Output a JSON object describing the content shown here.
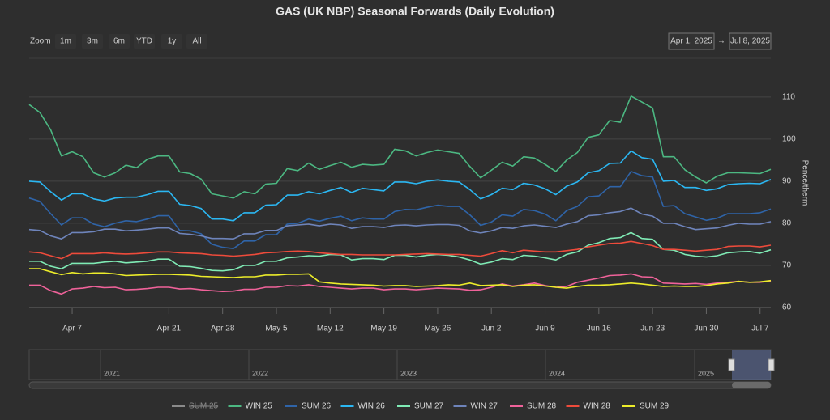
{
  "chart_data": {
    "type": "line",
    "title": "GAS (UK NBP) Seasonal Forwards (Daily Evolution)",
    "y_axis_label": "Pence/therm",
    "categories": [
      null,
      null,
      null,
      null,
      "Apr 7",
      null,
      null,
      null,
      null,
      null,
      null,
      null,
      null,
      "Apr 21",
      null,
      null,
      null,
      null,
      "Apr 28",
      null,
      null,
      null,
      null,
      "May 5",
      null,
      null,
      null,
      null,
      "May 12",
      null,
      null,
      null,
      null,
      "May 19",
      null,
      null,
      null,
      null,
      "May 26",
      null,
      null,
      null,
      null,
      "Jun 2",
      null,
      null,
      null,
      null,
      "Jun 9",
      null,
      null,
      null,
      null,
      "Jun 16",
      null,
      null,
      null,
      null,
      "Jun 23",
      null,
      null,
      null,
      null,
      "Jun 30",
      null,
      null,
      null,
      null,
      "Jul 7",
      null
    ],
    "ylim": [
      60,
      119
    ],
    "yticks": [
      60,
      70,
      80,
      90,
      100,
      110
    ],
    "grid": true,
    "legend": "bottom",
    "series": [
      {
        "name": "SUM 25",
        "color": "#9a9a9a",
        "visible": false
      },
      {
        "name": "WIN 25",
        "color": "#4cb882",
        "values": [
          108.2,
          106.3,
          102.2,
          96,
          97,
          95.8,
          92,
          91,
          92,
          93.8,
          93.2,
          95.2,
          96,
          96,
          92.2,
          91.8,
          90.5,
          87,
          86.5,
          86,
          87.5,
          87,
          89.3,
          89.5,
          93,
          92.5,
          94.3,
          92.8,
          93.7,
          94.5,
          93.3,
          94,
          93.8,
          94,
          97.6,
          97.2,
          96,
          96.8,
          97.4,
          97,
          96.6,
          93.5,
          90.8,
          92.6,
          94.5,
          93.6,
          95.8,
          95.5,
          94,
          92.3,
          95,
          96.8,
          100.4,
          101,
          104.4,
          104,
          110.2,
          108.8,
          107.4,
          95.8,
          95.8,
          92.7,
          91,
          89.6,
          91.2,
          92,
          92,
          91.9,
          91.8,
          92.8
        ]
      },
      {
        "name": "SUM 26",
        "color": "#2f64a8",
        "values": [
          86,
          85.2,
          82.3,
          79.6,
          81.3,
          81.3,
          79.8,
          79.2,
          80,
          80.6,
          80.4,
          81,
          81.8,
          81.8,
          78.3,
          78.2,
          77.5,
          75,
          74.3,
          74,
          75.8,
          75.8,
          77.3,
          77.3,
          79.8,
          80,
          81,
          80.5,
          81.2,
          81.7,
          80.6,
          81.3,
          81,
          81,
          82.8,
          83.3,
          83.2,
          83.8,
          84.3,
          84,
          84,
          82,
          79.5,
          80.3,
          82,
          81.7,
          83.3,
          83,
          82.2,
          80.6,
          83,
          84,
          86.3,
          86.5,
          88.7,
          88.7,
          92.3,
          91.3,
          91,
          84,
          84.2,
          82.3,
          81.5,
          80.7,
          81.2,
          82.3,
          82.3,
          82.3,
          82.5,
          83.4
        ]
      },
      {
        "name": "WIN 26",
        "color": "#2bb7f2",
        "values": [
          90,
          89.8,
          87.5,
          85.5,
          87,
          87,
          85.8,
          85.3,
          86,
          86.2,
          86.2,
          86.8,
          87.6,
          87.6,
          84.5,
          84.2,
          83.5,
          81,
          81,
          80.6,
          82.5,
          82.5,
          84.3,
          84.4,
          86.7,
          86.7,
          87.5,
          87,
          87.8,
          88.5,
          87.3,
          88.3,
          88,
          87.7,
          89.8,
          89.8,
          89.4,
          90,
          90.3,
          90,
          89.8,
          88,
          85.8,
          86.8,
          88.3,
          88,
          89.5,
          89.1,
          88.2,
          86.8,
          88.8,
          89.8,
          92,
          92.5,
          94.2,
          94.3,
          97.2,
          95.6,
          95.2,
          90,
          90.2,
          88.5,
          88.5,
          87.8,
          88.2,
          89.2,
          89.4,
          89.5,
          89.4,
          90.4
        ]
      },
      {
        "name": "SUM 27",
        "color": "#7febb5",
        "values": [
          71,
          71,
          69.8,
          69.2,
          70.5,
          70.5,
          70.5,
          70.8,
          71,
          70.6,
          70.8,
          71,
          71.5,
          71.5,
          69.8,
          69.7,
          69.3,
          68.8,
          68.7,
          69,
          70,
          70,
          71,
          71,
          71.8,
          72,
          72.3,
          72.2,
          72.6,
          72.5,
          71.3,
          71.6,
          71.6,
          71.4,
          72.4,
          72.4,
          72,
          72.4,
          72.6,
          72.4,
          72,
          71.3,
          70.3,
          70.8,
          71.6,
          71.4,
          72.4,
          72.2,
          71.8,
          71.3,
          72.6,
          73.2,
          74.8,
          75.4,
          76.4,
          76.6,
          77.8,
          76.4,
          76.2,
          73.8,
          73.6,
          72.6,
          72.2,
          72,
          72.3,
          73,
          73.2,
          73.3,
          72.9,
          73.7
        ]
      },
      {
        "name": "WIN 27",
        "color": "#6e84bb",
        "values": [
          78.5,
          78.3,
          77,
          76.3,
          77.8,
          77.8,
          78,
          78.6,
          78.6,
          78.2,
          78.4,
          78.6,
          78.9,
          78.9,
          77.6,
          77.4,
          77,
          76.4,
          76.4,
          76.3,
          77.5,
          77.5,
          78.3,
          78.3,
          79.4,
          79.6,
          79.8,
          79.4,
          79.8,
          79.6,
          78.8,
          79.2,
          79.2,
          79,
          79.5,
          79.6,
          79.4,
          79.6,
          79.7,
          79.7,
          79.5,
          78.2,
          77.7,
          78.2,
          79,
          78.8,
          79.4,
          79.6,
          79.3,
          79,
          79.8,
          80.4,
          81.8,
          82,
          82.5,
          82.8,
          83.6,
          82.2,
          81.7,
          80,
          80,
          79.2,
          78.5,
          78.7,
          78.9,
          79.5,
          80,
          79.8,
          79.8,
          80.4
        ]
      },
      {
        "name": "SUM 28",
        "color": "#f0629a",
        "values": [
          65.3,
          65.3,
          64,
          63.2,
          64.4,
          64.6,
          65,
          64.7,
          64.8,
          64.2,
          64.3,
          64.5,
          64.8,
          64.8,
          64.4,
          64.5,
          64.2,
          64,
          63.8,
          63.9,
          64.3,
          64.3,
          64.8,
          64.8,
          65.2,
          65.1,
          65.4,
          65,
          64.8,
          64.6,
          64.4,
          64.6,
          64.6,
          64.2,
          64.4,
          64.4,
          64.2,
          64.4,
          64.6,
          64.5,
          64.4,
          64.1,
          64.2,
          64.8,
          65.6,
          65.1,
          65.4,
          65.8,
          65.2,
          64.8,
          65,
          66,
          66.5,
          67,
          67.6,
          67.7,
          68,
          67.3,
          67.2,
          65.8,
          65.7,
          65.6,
          65.7,
          65.5,
          65.8,
          66,
          66.2,
          66,
          66,
          66.3
        ]
      },
      {
        "name": "WIN 28",
        "color": "#ee4b3b",
        "values": [
          73.2,
          73,
          72.3,
          71.6,
          72.8,
          72.8,
          72.8,
          73,
          72.8,
          72.7,
          72.8,
          73,
          73.2,
          73.2,
          73,
          72.9,
          72.8,
          72.5,
          72.4,
          72.2,
          72.4,
          72.6,
          73,
          73.1,
          73.3,
          73.4,
          73.3,
          73,
          72.8,
          72.6,
          72.6,
          72.5,
          72.5,
          72.5,
          72.5,
          72.6,
          72.7,
          72.8,
          72.7,
          72.6,
          72.6,
          72.4,
          72.2,
          72.8,
          73.5,
          73,
          73.6,
          73.4,
          73.2,
          73.2,
          73.5,
          73.8,
          74.4,
          74.8,
          75.2,
          75.3,
          75.7,
          75.2,
          74.7,
          73.8,
          73.8,
          73.6,
          73.4,
          73.6,
          73.8,
          74.5,
          74.6,
          74.6,
          74.4,
          74.8
        ]
      },
      {
        "name": "SUM 29",
        "color": "#ecec2a",
        "values": [
          69.2,
          69.2,
          68.5,
          67.8,
          68.3,
          68,
          68.2,
          68.2,
          68,
          67.6,
          67.7,
          67.8,
          67.9,
          67.9,
          67.8,
          67.7,
          67.4,
          67.3,
          67.2,
          67.1,
          67.3,
          67.3,
          67.7,
          67.7,
          67.9,
          67.9,
          68,
          66.1,
          65.8,
          65.6,
          65.5,
          65.4,
          65.3,
          65.1,
          65.2,
          65.2,
          65,
          65.1,
          65.2,
          65.4,
          65.3,
          65.8,
          65.2,
          65.3,
          65.4,
          65,
          65.3,
          65.4,
          65.1,
          64.8,
          64.6,
          65,
          65.3,
          65.3,
          65.4,
          65.6,
          65.8,
          65.6,
          65.3,
          65,
          65.1,
          65,
          65,
          65.2,
          65.6,
          65.8,
          66.2,
          66,
          66.1,
          66.4
        ]
      }
    ]
  },
  "range_selector": {
    "label": "Zoom",
    "buttons": [
      "1m",
      "3m",
      "6m",
      "YTD",
      "1y",
      "All"
    ],
    "from": "Apr 1, 2025",
    "arrow": "→",
    "to": "Jul 8, 2025"
  },
  "navigator": {
    "labels": [
      "2021",
      "2022",
      "2023",
      "2024",
      "2025"
    ]
  }
}
